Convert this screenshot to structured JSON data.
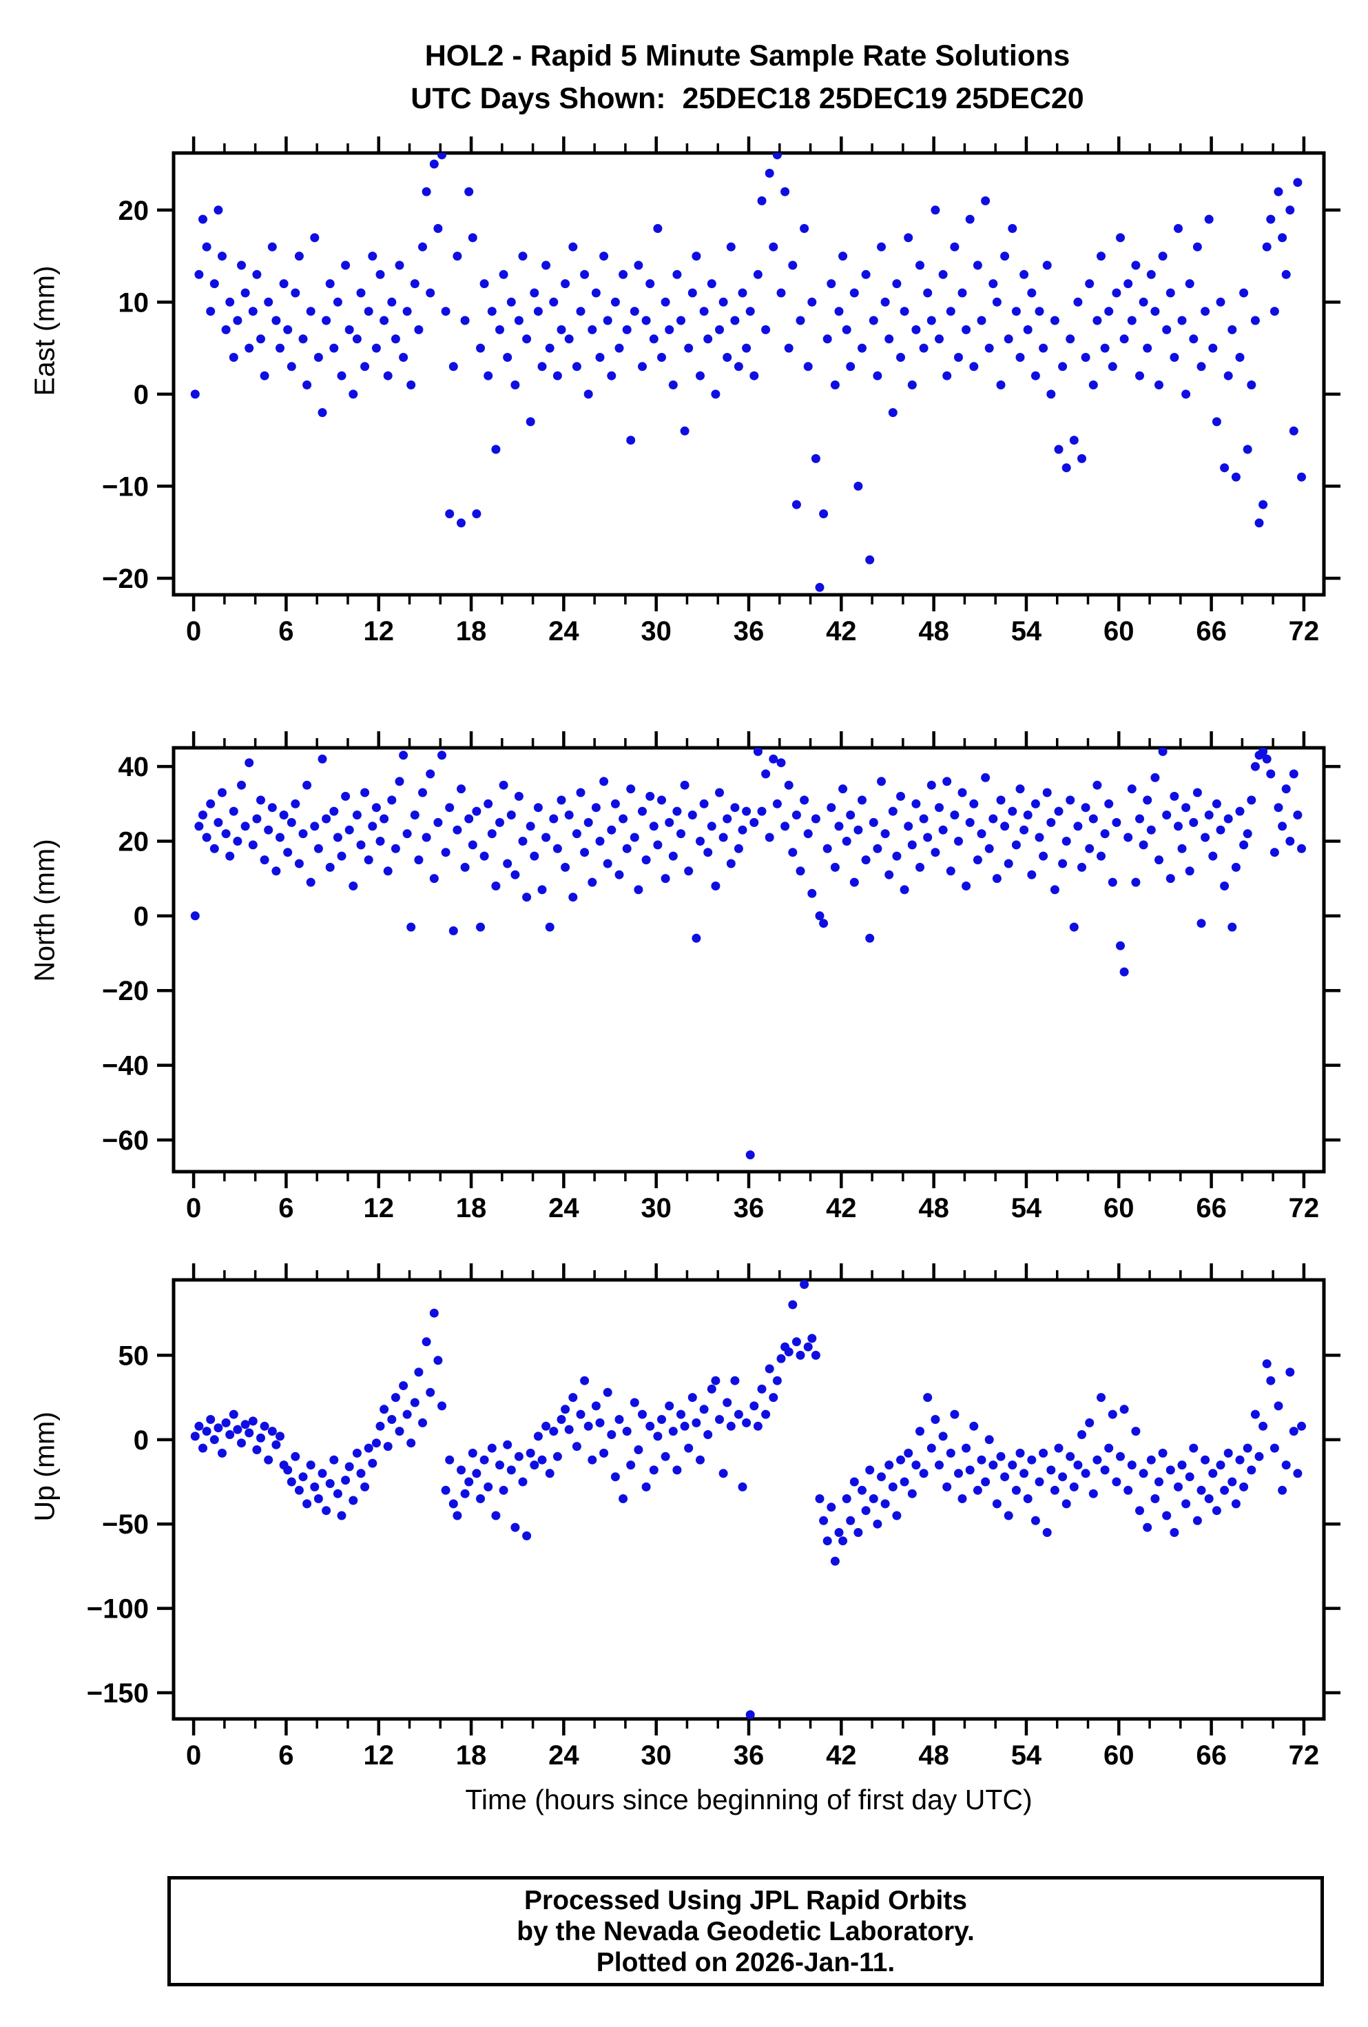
{
  "title": {
    "line1": "HOL2 - Rapid 5 Minute Sample Rate Solutions",
    "line2": "UTC Days Shown:  25DEC18 25DEC19 25DEC20"
  },
  "xlabel": "Time (hours since beginning of first day UTC)",
  "footer": {
    "line1": "Processed Using JPL Rapid Orbits",
    "line2": "by the Nevada Geodetic Laboratory.",
    "line3": "Plotted on 2026-Jan-11."
  },
  "marker_color": "#0e0ee2",
  "frame_color": "#000000",
  "chart_data": [
    {
      "type": "scatter",
      "name": "east",
      "ylabel": "East (mm)",
      "ylim": [
        -21.8,
        26.2
      ],
      "yticks": [
        20,
        10,
        0,
        -10,
        -20
      ],
      "xlim": [
        -1.3,
        73.3
      ],
      "xticks": [
        0,
        6,
        12,
        18,
        24,
        30,
        36,
        42,
        48,
        54,
        60,
        66,
        72
      ],
      "xminor_step": 2,
      "x_start": 0.1,
      "dx": 0.25,
      "y": [
        0,
        13,
        19,
        16,
        9,
        12,
        20,
        15,
        7,
        10,
        4,
        8,
        14,
        11,
        5,
        9,
        13,
        6,
        2,
        10,
        16,
        8,
        5,
        12,
        7,
        3,
        11,
        15,
        6,
        1,
        9,
        17,
        4,
        -2,
        8,
        12,
        5,
        10,
        2,
        14,
        7,
        0,
        6,
        11,
        3,
        9,
        15,
        5,
        13,
        8,
        2,
        10,
        6,
        14,
        4,
        9,
        1,
        12,
        7,
        16,
        22,
        11,
        25,
        18,
        26,
        9,
        -13,
        3,
        15,
        -14,
        8,
        22,
        17,
        -13,
        5,
        12,
        2,
        9,
        -6,
        7,
        13,
        4,
        10,
        1,
        8,
        15,
        6,
        -3,
        11,
        9,
        3,
        14,
        5,
        10,
        2,
        7,
        12,
        6,
        16,
        3,
        9,
        13,
        0,
        7,
        11,
        4,
        15,
        8,
        2,
        10,
        5,
        13,
        7,
        -5,
        9,
        14,
        3,
        8,
        12,
        6,
        18,
        4,
        10,
        7,
        1,
        13,
        8,
        -4,
        5,
        11,
        15,
        2,
        9,
        6,
        12,
        0,
        7,
        10,
        4,
        16,
        8,
        3,
        11,
        5,
        9,
        2,
        13,
        21,
        7,
        24,
        16,
        26,
        11,
        22,
        5,
        14,
        -12,
        8,
        18,
        3,
        10,
        -7,
        -21,
        -13,
        6,
        12,
        1,
        9,
        15,
        7,
        3,
        11,
        -10,
        5,
        13,
        -18,
        8,
        2,
        16,
        10,
        6,
        -2,
        12,
        4,
        9,
        17,
        1,
        7,
        14,
        5,
        11,
        8,
        20,
        6,
        13,
        2,
        9,
        16,
        4,
        11,
        7,
        19,
        3,
        14,
        8,
        21,
        5,
        12,
        10,
        1,
        15,
        6,
        18,
        9,
        4,
        13,
        7,
        11,
        2,
        9,
        5,
        14,
        0,
        8,
        -6,
        3,
        -8,
        6,
        -5,
        10,
        -7,
        4,
        12,
        1,
        8,
        15,
        5,
        9,
        3,
        11,
        17,
        6,
        12,
        8,
        14,
        2,
        10,
        5,
        13,
        9,
        1,
        15,
        7,
        11,
        4,
        18,
        8,
        0,
        12,
        6,
        16,
        3,
        9,
        19,
        5,
        -3,
        10,
        -8,
        2,
        7,
        -9,
        4,
        11,
        -6,
        1,
        8,
        -14,
        -12,
        16,
        19,
        9,
        22,
        17,
        13,
        20,
        -4,
        23,
        -9
      ]
    },
    {
      "type": "scatter",
      "name": "north",
      "ylabel": "North (mm)",
      "ylim": [
        -68.5,
        45
      ],
      "yticks": [
        40,
        20,
        0,
        -20,
        -40,
        -60
      ],
      "xlim": [
        -1.3,
        73.3
      ],
      "xticks": [
        0,
        6,
        12,
        18,
        24,
        30,
        36,
        42,
        48,
        54,
        60,
        66,
        72
      ],
      "xminor_step": 2,
      "x_start": 0.1,
      "dx": 0.25,
      "y": [
        0,
        24,
        27,
        21,
        30,
        18,
        25,
        33,
        22,
        16,
        28,
        20,
        35,
        24,
        41,
        19,
        26,
        31,
        15,
        23,
        29,
        12,
        21,
        27,
        17,
        25,
        30,
        14,
        22,
        35,
        9,
        24,
        18,
        42,
        26,
        13,
        28,
        21,
        16,
        32,
        23,
        8,
        27,
        19,
        33,
        15,
        24,
        29,
        20,
        26,
        12,
        31,
        18,
        36,
        43,
        22,
        -3,
        27,
        15,
        33,
        21,
        38,
        10,
        25,
        43,
        17,
        29,
        -4,
        23,
        34,
        13,
        26,
        19,
        28,
        -3,
        16,
        30,
        22,
        8,
        25,
        35,
        14,
        27,
        11,
        32,
        20,
        5,
        24,
        16,
        29,
        7,
        21,
        -3,
        26,
        18,
        31,
        13,
        27,
        5,
        22,
        33,
        17,
        25,
        9,
        29,
        20,
        36,
        14,
        23,
        30,
        11,
        26,
        18,
        34,
        21,
        7,
        28,
        15,
        32,
        24,
        19,
        31,
        10,
        25,
        16,
        28,
        22,
        35,
        12,
        27,
        -6,
        20,
        30,
        17,
        24,
        8,
        33,
        21,
        26,
        14,
        29,
        18,
        23,
        28,
        -64,
        25,
        44,
        28,
        38,
        21,
        42,
        30,
        41,
        24,
        35,
        17,
        27,
        12,
        31,
        22,
        6,
        26,
        0,
        -2,
        18,
        29,
        13,
        24,
        34,
        20,
        27,
        9,
        23,
        31,
        15,
        -6,
        25,
        18,
        36,
        22,
        11,
        28,
        16,
        32,
        7,
        24,
        19,
        30,
        13,
        26,
        21,
        35,
        17,
        29,
        23,
        36,
        12,
        27,
        20,
        33,
        8,
        25,
        30,
        15,
        22,
        37,
        18,
        26,
        10,
        31,
        24,
        14,
        28,
        19,
        34,
        23,
        27,
        11,
        30,
        21,
        16,
        33,
        25,
        7,
        28,
        14,
        20,
        31,
        -3,
        24,
        13,
        29,
        18,
        26,
        35,
        16,
        22,
        30,
        9,
        25,
        -8,
        -15,
        21,
        34,
        9,
        26,
        19,
        31,
        23,
        37,
        15,
        44,
        27,
        10,
        32,
        24,
        18,
        29,
        12,
        25,
        33,
        -2,
        21,
        27,
        16,
        30,
        23,
        8,
        26,
        -3,
        13,
        28,
        19,
        22,
        31,
        40,
        43,
        44,
        42,
        38,
        17,
        29,
        24,
        34,
        20,
        38,
        27,
        18
      ]
    },
    {
      "type": "scatter",
      "name": "up",
      "ylabel": "Up (mm)",
      "ylim": [
        -165.5,
        94.7
      ],
      "yticks": [
        50,
        0,
        -50,
        -100,
        -150
      ],
      "xlim": [
        -1.3,
        73.3
      ],
      "xticks": [
        0,
        6,
        12,
        18,
        24,
        30,
        36,
        42,
        48,
        54,
        60,
        66,
        72
      ],
      "xminor_step": 2,
      "x_start": 0.1,
      "dx": 0.25,
      "y": [
        2,
        8,
        -5,
        5,
        12,
        0,
        7,
        -8,
        10,
        3,
        15,
        6,
        -2,
        9,
        4,
        11,
        -6,
        1,
        8,
        -12,
        5,
        -3,
        2,
        -15,
        -18,
        -25,
        -10,
        -30,
        -22,
        -38,
        -15,
        -28,
        -35,
        -20,
        -42,
        -26,
        -12,
        -32,
        -45,
        -24,
        -16,
        -36,
        -8,
        -20,
        -28,
        -5,
        -14,
        -2,
        8,
        18,
        -4,
        12,
        25,
        5,
        32,
        15,
        -2,
        22,
        40,
        10,
        58,
        28,
        75,
        47,
        20,
        -30,
        -12,
        -38,
        -45,
        -18,
        -32,
        -25,
        -8,
        -20,
        -35,
        -12,
        -28,
        -5,
        -45,
        -15,
        -30,
        -3,
        -18,
        -52,
        -10,
        -25,
        -57,
        -8,
        -15,
        2,
        -12,
        8,
        -20,
        5,
        -10,
        12,
        18,
        6,
        25,
        -4,
        15,
        35,
        8,
        -12,
        20,
        10,
        -8,
        28,
        3,
        -22,
        12,
        -35,
        5,
        -15,
        22,
        -6,
        15,
        -28,
        8,
        -18,
        2,
        12,
        -10,
        20,
        5,
        -18,
        15,
        8,
        -5,
        25,
        10,
        -12,
        18,
        3,
        30,
        35,
        12,
        -20,
        22,
        8,
        35,
        15,
        -28,
        10,
        -163,
        20,
        8,
        30,
        15,
        42,
        25,
        35,
        48,
        55,
        52,
        80,
        58,
        50,
        92,
        55,
        60,
        50,
        -35,
        -48,
        -60,
        -40,
        -72,
        -55,
        -60,
        -35,
        -48,
        -25,
        -55,
        -30,
        -42,
        -18,
        -35,
        -50,
        -22,
        -38,
        -15,
        -28,
        -45,
        -12,
        -25,
        -8,
        -32,
        -15,
        5,
        -20,
        25,
        -5,
        12,
        -15,
        2,
        -28,
        -8,
        15,
        -20,
        -35,
        -5,
        -18,
        8,
        -30,
        -12,
        -25,
        0,
        -15,
        -38,
        -10,
        -22,
        -45,
        -15,
        -30,
        -8,
        -20,
        -35,
        -12,
        -48,
        -25,
        -8,
        -55,
        -18,
        -30,
        -5,
        -22,
        -38,
        -10,
        -28,
        -15,
        3,
        -20,
        10,
        -32,
        -12,
        25,
        -18,
        -5,
        15,
        -25,
        -10,
        18,
        -30,
        -15,
        5,
        -42,
        -20,
        -52,
        -12,
        -35,
        -25,
        -8,
        -45,
        -18,
        -55,
        -28,
        -15,
        -38,
        -22,
        -5,
        -48,
        -30,
        -12,
        -35,
        -20,
        -42,
        -15,
        -30,
        -8,
        -25,
        -38,
        -12,
        -28,
        -5,
        -18,
        15,
        -10,
        8,
        45,
        35,
        -5,
        20,
        -30,
        -15,
        40,
        5,
        -20,
        8
      ]
    }
  ]
}
